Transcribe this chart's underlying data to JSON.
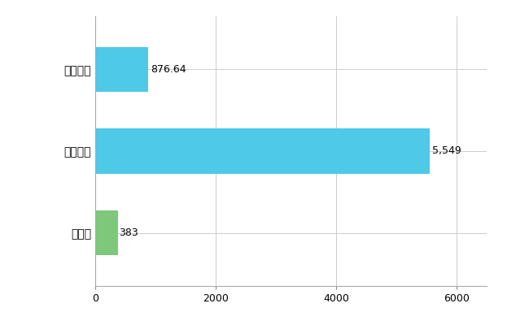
{
  "categories": [
    "全国平均",
    "全国最大",
    "愛媛県"
  ],
  "values": [
    876.64,
    5549,
    383
  ],
  "bar_colors": [
    "#4ec9e8",
    "#4ec9e8",
    "#7dc87a"
  ],
  "value_labels": [
    "876.64",
    "5,549",
    "383"
  ],
  "xlim": [
    0,
    6500
  ],
  "xticks": [
    0,
    2000,
    4000,
    6000
  ],
  "background_color": "#ffffff",
  "grid_color": "#cccccc",
  "bar_height": 0.55,
  "figsize": [
    6.5,
    4.0
  ],
  "dpi": 100
}
